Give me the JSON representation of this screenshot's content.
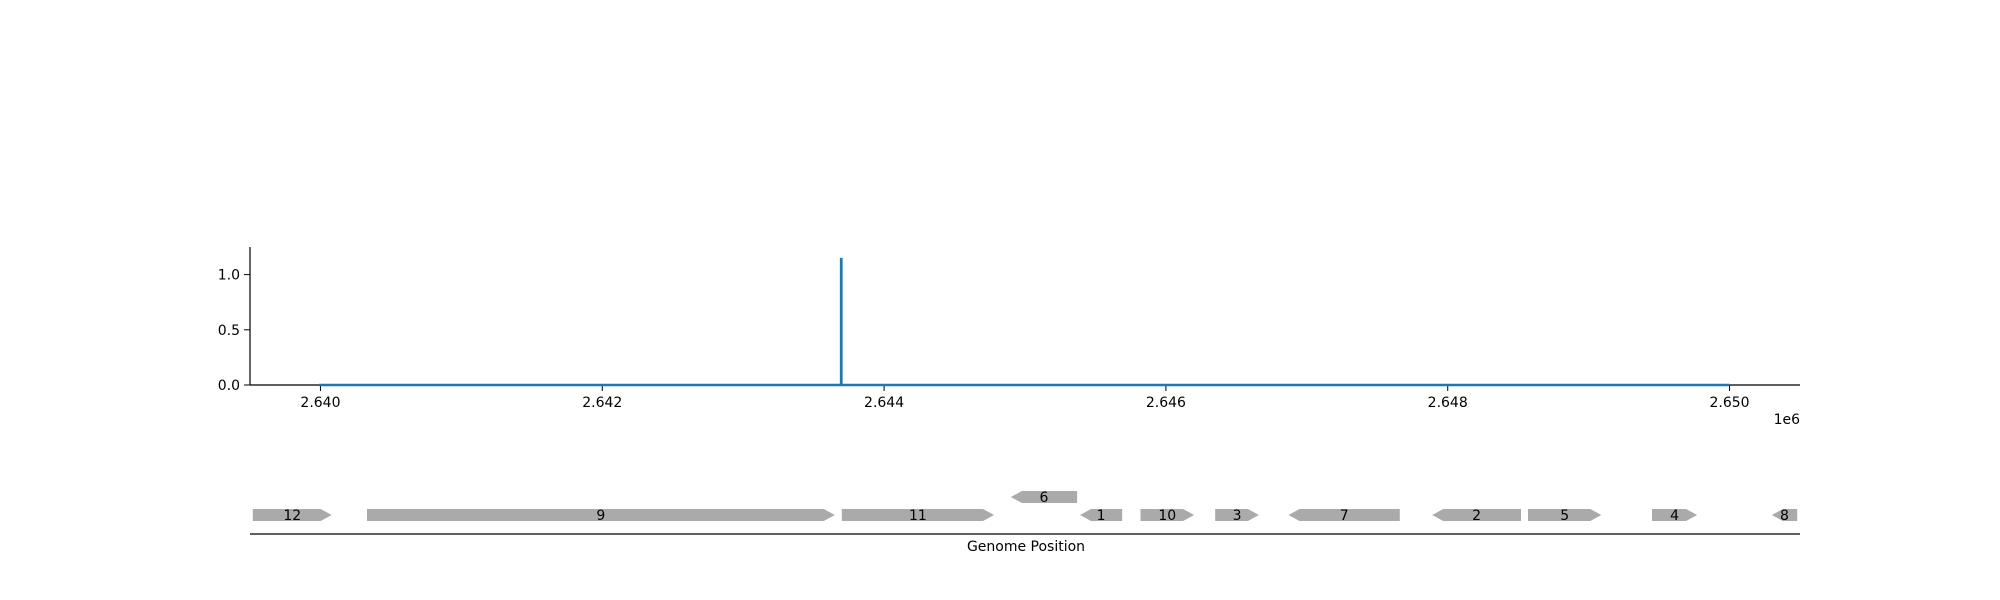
{
  "chart_data": [
    {
      "type": "line",
      "x": [
        2639991,
        2643695,
        2643695,
        2643697,
        2643697,
        2650000
      ],
      "y": [
        0,
        0,
        1.14,
        1.14,
        0,
        0
      ],
      "xlim": [
        2639500,
        2650500
      ],
      "ylim": [
        0,
        1.25
      ],
      "x_ticks": [
        2640000,
        2642000,
        2644000,
        2646000,
        2648000,
        2650000
      ],
      "x_tick_labels": [
        "2.640",
        "2.642",
        "2.644",
        "2.646",
        "2.648",
        "2.650"
      ],
      "x_offset_label": "1e6",
      "y_ticks": [
        0,
        0.5,
        1.0
      ],
      "y_tick_labels": [
        "0.0",
        "0.5",
        "1.0"
      ],
      "line_color": "#1f77b4",
      "grid": false
    },
    {
      "type": "gene-track",
      "xlabel": "Genome Position",
      "xlim": [
        2639500,
        2650500
      ],
      "feature_color": "#aaaaaa",
      "features": [
        {
          "label": "12",
          "start": 2639520,
          "end": 2640080,
          "strand": 1,
          "level": 0
        },
        {
          "label": "9",
          "start": 2640330,
          "end": 2643650,
          "strand": 1,
          "level": 0
        },
        {
          "label": "11",
          "start": 2643700,
          "end": 2644780,
          "strand": 1,
          "level": 0
        },
        {
          "label": "6",
          "start": 2644900,
          "end": 2645370,
          "strand": -1,
          "level": 1
        },
        {
          "label": "1",
          "start": 2645390,
          "end": 2645690,
          "strand": -1,
          "level": 0
        },
        {
          "label": "10",
          "start": 2645820,
          "end": 2646200,
          "strand": 1,
          "level": 0
        },
        {
          "label": "3",
          "start": 2646350,
          "end": 2646660,
          "strand": 1,
          "level": 0
        },
        {
          "label": "7",
          "start": 2646870,
          "end": 2647660,
          "strand": -1,
          "level": 0
        },
        {
          "label": "2",
          "start": 2647890,
          "end": 2648520,
          "strand": -1,
          "level": 0
        },
        {
          "label": "5",
          "start": 2648570,
          "end": 2649090,
          "strand": 1,
          "level": 0
        },
        {
          "label": "4",
          "start": 2649450,
          "end": 2649770,
          "strand": 1,
          "level": 0
        },
        {
          "label": "8",
          "start": 2650300,
          "end": 2650480,
          "strand": -1,
          "level": 0
        }
      ]
    }
  ]
}
